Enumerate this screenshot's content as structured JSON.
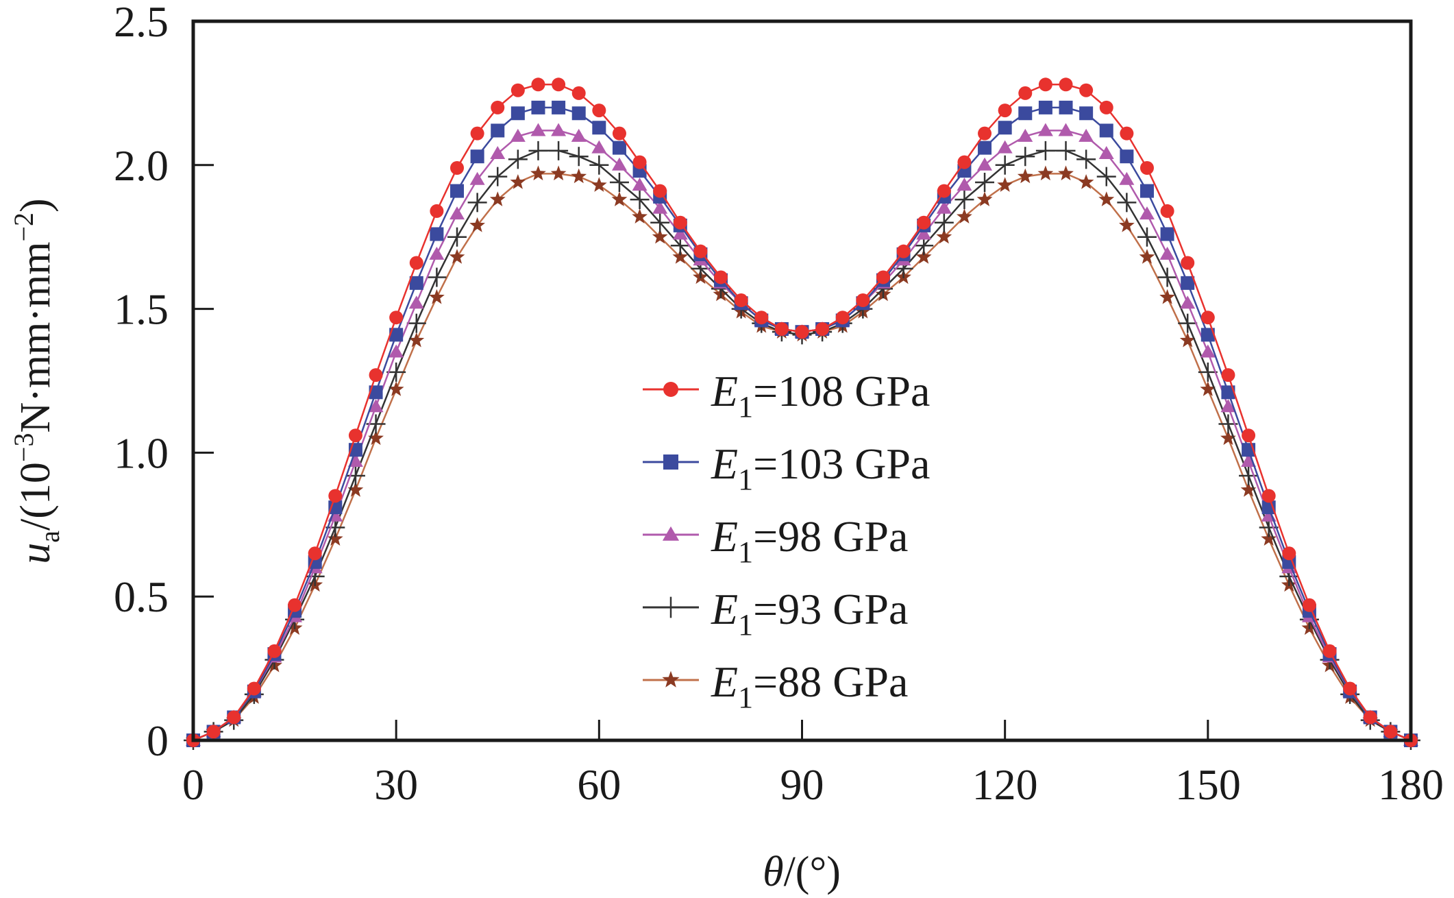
{
  "chart_data": {
    "type": "line",
    "title": "",
    "xlabel": "θ/(°)",
    "xlabel_parts": {
      "symbol": "θ",
      "rest": "/(°)"
    },
    "ylabel": "u_a/(10^-3 N·mm·mm^-2)",
    "ylabel_parts": {
      "symbol": "u",
      "subscript": "a",
      "prefix": "/(10",
      "exp1": "−3",
      "middle": "N·mm·mm",
      "exp2": "−2",
      "suffix": ")"
    },
    "xlim": [
      0,
      180
    ],
    "ylim": [
      0,
      2.5
    ],
    "xticks": [
      0,
      30,
      60,
      90,
      120,
      150,
      180
    ],
    "xtick_labels": [
      "0",
      "30",
      "60",
      "90",
      "120",
      "150",
      "180"
    ],
    "yticks": [
      0,
      0.5,
      1.0,
      1.5,
      2.0,
      2.5
    ],
    "ytick_labels": [
      "0",
      "0.5",
      "1.0",
      "1.5",
      "2.0",
      "2.5"
    ],
    "grid": false,
    "legend_position": "center",
    "x": [
      0,
      3,
      6,
      9,
      12,
      15,
      18,
      21,
      24,
      27,
      30,
      33,
      36,
      39,
      42,
      45,
      48,
      51,
      54,
      57,
      60,
      63,
      66,
      69,
      72,
      75,
      78,
      81,
      84,
      87,
      90,
      93,
      96,
      99,
      102,
      105,
      108,
      111,
      114,
      117,
      120,
      123,
      126,
      129,
      132,
      135,
      138,
      141,
      144,
      147,
      150,
      153,
      156,
      159,
      162,
      165,
      168,
      171,
      174,
      177,
      180
    ],
    "series": [
      {
        "name": "E1=108 GPa",
        "label_symbol": "E",
        "label_sub": "1",
        "label_rest": "=108 GPa",
        "color": "#e8322e",
        "marker": "circle",
        "values": [
          0,
          0.03,
          0.08,
          0.18,
          0.31,
          0.47,
          0.65,
          0.85,
          1.06,
          1.27,
          1.47,
          1.66,
          1.84,
          1.99,
          2.11,
          2.2,
          2.26,
          2.28,
          2.28,
          2.25,
          2.19,
          2.11,
          2.01,
          1.91,
          1.8,
          1.7,
          1.61,
          1.53,
          1.47,
          1.43,
          1.42,
          1.43,
          1.47,
          1.53,
          1.61,
          1.7,
          1.8,
          1.91,
          2.01,
          2.11,
          2.19,
          2.25,
          2.28,
          2.28,
          2.26,
          2.2,
          2.11,
          1.99,
          1.84,
          1.66,
          1.47,
          1.27,
          1.06,
          0.85,
          0.65,
          0.47,
          0.31,
          0.18,
          0.08,
          0.03,
          0
        ]
      },
      {
        "name": "E1=103 GPa",
        "label_symbol": "E",
        "label_sub": "1",
        "label_rest": "=103 GPa",
        "color": "#3b4a9e",
        "marker": "square",
        "values": [
          0,
          0.03,
          0.08,
          0.17,
          0.3,
          0.45,
          0.62,
          0.81,
          1.01,
          1.21,
          1.41,
          1.59,
          1.76,
          1.91,
          2.03,
          2.12,
          2.18,
          2.2,
          2.2,
          2.18,
          2.13,
          2.06,
          1.98,
          1.89,
          1.79,
          1.69,
          1.6,
          1.52,
          1.46,
          1.43,
          1.42,
          1.43,
          1.46,
          1.52,
          1.6,
          1.69,
          1.79,
          1.89,
          1.98,
          2.06,
          2.13,
          2.18,
          2.2,
          2.2,
          2.18,
          2.12,
          2.03,
          1.91,
          1.76,
          1.59,
          1.41,
          1.21,
          1.01,
          0.81,
          0.62,
          0.45,
          0.3,
          0.17,
          0.08,
          0.03,
          0
        ]
      },
      {
        "name": "E1=98 GPa",
        "label_symbol": "E",
        "label_sub": "1",
        "label_rest": "=98 GPa",
        "color": "#b05aac",
        "marker": "triangle",
        "values": [
          0,
          0.03,
          0.08,
          0.17,
          0.29,
          0.43,
          0.6,
          0.78,
          0.97,
          1.16,
          1.35,
          1.52,
          1.69,
          1.83,
          1.95,
          2.04,
          2.1,
          2.12,
          2.12,
          2.1,
          2.06,
          2.0,
          1.93,
          1.85,
          1.76,
          1.67,
          1.59,
          1.52,
          1.46,
          1.43,
          1.42,
          1.43,
          1.46,
          1.52,
          1.59,
          1.67,
          1.76,
          1.85,
          1.93,
          2.0,
          2.06,
          2.1,
          2.12,
          2.12,
          2.1,
          2.04,
          1.95,
          1.83,
          1.69,
          1.52,
          1.35,
          1.16,
          0.97,
          0.78,
          0.6,
          0.43,
          0.29,
          0.17,
          0.08,
          0.03,
          0
        ]
      },
      {
        "name": "E1=93 GPa",
        "label_symbol": "E",
        "label_sub": "1",
        "label_rest": "=93 GPa",
        "color": "#333333",
        "marker": "plus",
        "values": [
          0,
          0.03,
          0.07,
          0.16,
          0.28,
          0.42,
          0.57,
          0.74,
          0.92,
          1.1,
          1.28,
          1.45,
          1.61,
          1.75,
          1.87,
          1.96,
          2.02,
          2.05,
          2.05,
          2.03,
          2.0,
          1.94,
          1.88,
          1.8,
          1.72,
          1.64,
          1.57,
          1.5,
          1.45,
          1.42,
          1.41,
          1.42,
          1.45,
          1.5,
          1.57,
          1.64,
          1.72,
          1.8,
          1.88,
          1.94,
          2.0,
          2.03,
          2.05,
          2.05,
          2.02,
          1.96,
          1.87,
          1.75,
          1.61,
          1.45,
          1.28,
          1.1,
          0.92,
          0.74,
          0.57,
          0.42,
          0.28,
          0.16,
          0.07,
          0.03,
          0
        ]
      },
      {
        "name": "E1=88 GPa",
        "label_symbol": "E",
        "label_sub": "1",
        "label_rest": "=88 GPa",
        "color": "#8b3a22",
        "line_color": "#c0704a",
        "marker": "star",
        "values": [
          0,
          0.03,
          0.07,
          0.15,
          0.26,
          0.39,
          0.54,
          0.7,
          0.87,
          1.05,
          1.22,
          1.39,
          1.54,
          1.68,
          1.79,
          1.88,
          1.94,
          1.97,
          1.97,
          1.96,
          1.93,
          1.88,
          1.82,
          1.75,
          1.68,
          1.61,
          1.55,
          1.49,
          1.44,
          1.42,
          1.41,
          1.42,
          1.44,
          1.49,
          1.55,
          1.61,
          1.68,
          1.75,
          1.82,
          1.88,
          1.93,
          1.96,
          1.97,
          1.97,
          1.94,
          1.88,
          1.79,
          1.68,
          1.54,
          1.39,
          1.22,
          1.05,
          0.87,
          0.7,
          0.54,
          0.39,
          0.26,
          0.15,
          0.07,
          0.03,
          0
        ]
      }
    ]
  }
}
